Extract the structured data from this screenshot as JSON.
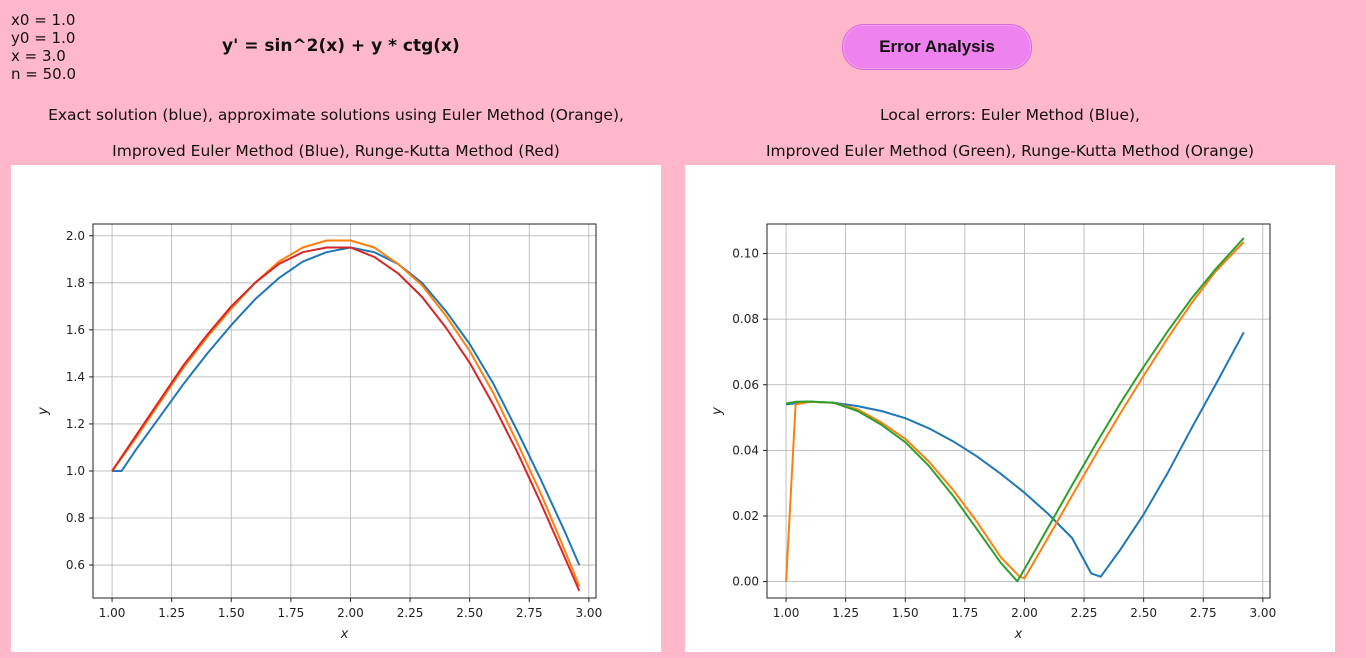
{
  "params": {
    "x0": "x0 = 1.0",
    "y0": "y0 = 1.0",
    "x": "x = 3.0",
    "n": "n = 50.0"
  },
  "equation": "y' = sin^2(x) + y * ctg(x)",
  "error_button_label": "Error Analysis",
  "captions": {
    "left_line1": "Exact solution (blue), approximate solutions using Euler Method (Orange),",
    "left_line2": "Improved Euler Method (Blue), Runge-Kutta Method (Red)",
    "right_line1": "Local errors: Euler Method (Blue),",
    "right_line2": "Improved Euler Method (Green), Runge-Kutta Method (Orange)"
  },
  "colors": {
    "background": "#ffb8c9",
    "button": "#ee82ee",
    "blue": "#1f77b4",
    "orange": "#ff7f0e",
    "green": "#2ca02c",
    "red": "#d62728",
    "grid": "#b0b0b0"
  },
  "chart_data": [
    {
      "type": "line",
      "title": "",
      "xlabel": "x",
      "ylabel": "y",
      "xlim": [
        0.92,
        3.03
      ],
      "ylim": [
        0.46,
        2.05
      ],
      "grid": true,
      "xticks": [
        "1.00",
        "1.25",
        "1.50",
        "1.75",
        "2.00",
        "2.25",
        "2.50",
        "2.75",
        "3.00"
      ],
      "xtick_values": [
        1.0,
        1.25,
        1.5,
        1.75,
        2.0,
        2.25,
        2.5,
        2.75,
        3.0
      ],
      "yticks": [
        "0.6",
        "0.8",
        "1.0",
        "1.2",
        "1.4",
        "1.6",
        "1.8",
        "2.0"
      ],
      "ytick_values": [
        0.6,
        0.8,
        1.0,
        1.2,
        1.4,
        1.6,
        1.8,
        2.0
      ],
      "series": [
        {
          "color": "#1f77b4",
          "x": [
            1.0,
            1.04,
            1.1,
            1.2,
            1.3,
            1.4,
            1.5,
            1.6,
            1.7,
            1.8,
            1.9,
            2.0,
            2.1,
            2.2,
            2.3,
            2.4,
            2.5,
            2.6,
            2.7,
            2.8,
            2.9,
            2.96
          ],
          "y": [
            1.0,
            1.0,
            1.09,
            1.23,
            1.37,
            1.5,
            1.62,
            1.73,
            1.82,
            1.89,
            1.93,
            1.95,
            1.93,
            1.88,
            1.8,
            1.68,
            1.54,
            1.37,
            1.17,
            0.96,
            0.74,
            0.6
          ]
        },
        {
          "color": "#ff7f0e",
          "x": [
            1.0,
            1.1,
            1.2,
            1.3,
            1.4,
            1.5,
            1.6,
            1.7,
            1.8,
            1.9,
            2.0,
            2.1,
            2.2,
            2.3,
            2.4,
            2.5,
            2.6,
            2.7,
            2.8,
            2.9,
            2.96
          ],
          "y": [
            1.0,
            1.14,
            1.29,
            1.44,
            1.57,
            1.69,
            1.8,
            1.89,
            1.95,
            1.98,
            1.98,
            1.95,
            1.88,
            1.79,
            1.66,
            1.51,
            1.33,
            1.12,
            0.9,
            0.66,
            0.51
          ]
        },
        {
          "color": "#d62728",
          "x": [
            1.0,
            1.1,
            1.2,
            1.3,
            1.4,
            1.5,
            1.6,
            1.7,
            1.8,
            1.9,
            2.0,
            2.1,
            2.2,
            2.3,
            2.4,
            2.5,
            2.6,
            2.7,
            2.8,
            2.9,
            2.96
          ],
          "y": [
            1.0,
            1.15,
            1.3,
            1.45,
            1.58,
            1.7,
            1.8,
            1.88,
            1.93,
            1.95,
            1.95,
            1.91,
            1.84,
            1.74,
            1.61,
            1.46,
            1.28,
            1.08,
            0.86,
            0.63,
            0.49
          ]
        }
      ]
    },
    {
      "type": "line",
      "title": "",
      "xlabel": "x",
      "ylabel": "y",
      "xlim": [
        0.92,
        3.03
      ],
      "ylim": [
        -0.005,
        0.109
      ],
      "grid": true,
      "xticks": [
        "1.00",
        "1.25",
        "1.50",
        "1.75",
        "2.00",
        "2.25",
        "2.50",
        "2.75",
        "3.00"
      ],
      "xtick_values": [
        1.0,
        1.25,
        1.5,
        1.75,
        2.0,
        2.25,
        2.5,
        2.75,
        3.0
      ],
      "yticks": [
        "0.00",
        "0.02",
        "0.04",
        "0.06",
        "0.08",
        "0.10"
      ],
      "ytick_values": [
        0.0,
        0.02,
        0.04,
        0.06,
        0.08,
        0.1
      ],
      "series": [
        {
          "color": "#1f77b4",
          "x": [
            1.0,
            1.1,
            1.2,
            1.3,
            1.4,
            1.5,
            1.6,
            1.7,
            1.8,
            1.9,
            2.0,
            2.1,
            2.2,
            2.28,
            2.32,
            2.4,
            2.5,
            2.6,
            2.7,
            2.8,
            2.92
          ],
          "y": [
            0.054,
            0.0548,
            0.0545,
            0.0535,
            0.052,
            0.0498,
            0.0467,
            0.0428,
            0.0382,
            0.0329,
            0.0271,
            0.0206,
            0.0133,
            0.0025,
            0.0015,
            0.0095,
            0.0205,
            0.033,
            0.0466,
            0.0598,
            0.076
          ]
        },
        {
          "color": "#ff7f0e",
          "x": [
            1.0,
            1.04,
            1.1,
            1.2,
            1.3,
            1.4,
            1.5,
            1.6,
            1.7,
            1.8,
            1.9,
            1.98,
            2.0,
            2.1,
            2.2,
            2.3,
            2.4,
            2.5,
            2.6,
            2.7,
            2.8,
            2.92
          ],
          "y": [
            0.0,
            0.054,
            0.0548,
            0.0545,
            0.0525,
            0.0485,
            0.0435,
            0.0365,
            0.028,
            0.0183,
            0.0075,
            0.0015,
            0.001,
            0.0135,
            0.0262,
            0.0388,
            0.051,
            0.0628,
            0.0741,
            0.0848,
            0.0944,
            0.1035
          ]
        },
        {
          "color": "#2ca02c",
          "x": [
            1.0,
            1.04,
            1.1,
            1.2,
            1.3,
            1.4,
            1.5,
            1.6,
            1.7,
            1.8,
            1.9,
            1.97,
            2.0,
            2.1,
            2.2,
            2.3,
            2.4,
            2.5,
            2.6,
            2.7,
            2.8,
            2.92
          ],
          "y": [
            0.0543,
            0.0548,
            0.0549,
            0.0545,
            0.052,
            0.0478,
            0.0425,
            0.0352,
            0.0262,
            0.016,
            0.0058,
            0.0001,
            0.0038,
            0.0166,
            0.0294,
            0.042,
            0.0541,
            0.0655,
            0.0762,
            0.0862,
            0.0951,
            0.1047
          ]
        }
      ]
    }
  ]
}
